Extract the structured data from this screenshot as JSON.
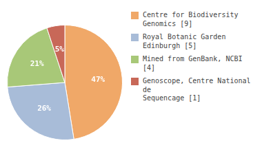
{
  "chart_data": {
    "type": "pie",
    "categories": [
      "Centre for Biodiversity\nGenomics [9]",
      "Royal Botanic Garden Edinburgh [5]",
      "Mined from GenBank, NCBI [4]",
      "Genoscope, Centre National de\nSequencage [1]"
    ],
    "values": [
      47,
      26,
      21,
      5
    ],
    "value_labels": [
      "47%",
      "26%",
      "21%",
      "5%"
    ],
    "colors": [
      "#f0a868",
      "#a8bcd8",
      "#a8c878",
      "#c86858"
    ],
    "data_labels": true,
    "legend": "right"
  }
}
